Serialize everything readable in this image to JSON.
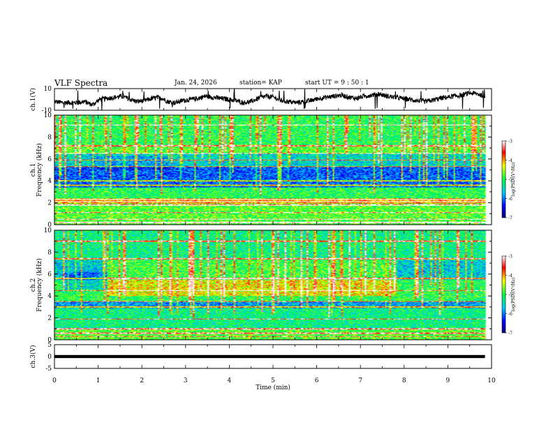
{
  "header": {
    "title": "VLF Spectra",
    "date": "Jan. 24, 2026",
    "station": "station= KAP",
    "start": "start UT =  9 : 50 : 1"
  },
  "chart_data": [
    {
      "type": "line",
      "id": "ch1-waveform",
      "ylabel": "ch.1(V)",
      "ylim": [
        -10,
        10
      ],
      "yticks": [
        "10",
        "-10"
      ],
      "xlim": [
        0,
        10
      ],
      "series": [
        {
          "name": "ch.1",
          "x_range": [
            0,
            9.85
          ],
          "approx_level_V": [
            -2,
            -3,
            -3,
            -3,
            -2,
            -5,
            0,
            1,
            2,
            3,
            0,
            -2,
            -1,
            1,
            2,
            -2,
            -3,
            -1,
            0,
            1,
            3,
            2,
            1,
            0,
            -1,
            -3,
            -2,
            1,
            3,
            2,
            -1,
            -2,
            -3,
            -2,
            -1,
            1,
            2,
            3,
            4,
            2,
            1,
            3,
            4,
            5,
            3,
            2,
            1,
            0,
            -1,
            -2,
            -1,
            1,
            2,
            3,
            4,
            6,
            5,
            3
          ]
        }
      ]
    },
    {
      "type": "heatmap",
      "id": "ch1-spectrogram",
      "ylabel": "ch.1\nFrequency (kHz)",
      "ylim": [
        0,
        10
      ],
      "yticks": [
        "0",
        "2",
        "4",
        "6",
        "8",
        "10"
      ],
      "xlim": [
        0,
        10
      ],
      "time_extent_min": 9.85,
      "colorbar": {
        "label": "log(PSD)(V²/Hz)",
        "range": [
          -7,
          -3
        ],
        "ticks": [
          "-3",
          "-4",
          "-5",
          "-6",
          "-7"
        ]
      },
      "bands": [
        {
          "f_kHz": [
            0.0,
            1.9
          ],
          "log_psd": -4.8
        },
        {
          "f_kHz": [
            1.9,
            2.4
          ],
          "log_psd": -4.0
        },
        {
          "f_kHz": [
            2.4,
            3.4
          ],
          "log_psd": -5.0
        },
        {
          "f_kHz": [
            3.4,
            3.9
          ],
          "log_psd": -6.0
        },
        {
          "f_kHz": [
            3.9,
            5.3
          ],
          "log_psd": -6.1
        },
        {
          "f_kHz": [
            5.3,
            6.5
          ],
          "log_psd": -5.5
        },
        {
          "f_kHz": [
            6.5,
            7.2
          ],
          "log_psd": -4.8
        },
        {
          "f_kHz": [
            7.2,
            10.0
          ],
          "log_psd": -5.0
        }
      ],
      "lines_kHz": [
        0.2,
        0.5,
        1.1,
        1.8,
        2.1,
        2.3,
        3.6,
        4.0,
        5.3,
        5.9,
        6.5,
        7.2,
        9.1
      ]
    },
    {
      "type": "heatmap",
      "id": "ch2-spectrogram",
      "ylabel": "ch.2\nFrequency (kHz)",
      "ylim": [
        0,
        10
      ],
      "yticks": [
        "0",
        "2",
        "4",
        "6",
        "8",
        "10"
      ],
      "xlim": [
        0,
        10
      ],
      "time_extent_min": 9.85,
      "colorbar": {
        "label": "log(PSD)(V²/Hz)",
        "range": [
          -7,
          -3
        ],
        "ticks": [
          "-3",
          "-4",
          "-5",
          "-6",
          "-7"
        ]
      },
      "bands": [
        {
          "f_kHz": [
            0.0,
            1.0
          ],
          "log_psd": -4.8
        },
        {
          "f_kHz": [
            1.0,
            2.9
          ],
          "log_psd": -5.2
        },
        {
          "f_kHz": [
            2.9,
            3.5
          ],
          "log_psd": -5.8
        },
        {
          "f_kHz": [
            3.5,
            5.5
          ],
          "log_psd": -5.0
        },
        {
          "f_kHz": [
            5.5,
            7.3
          ],
          "log_psd": -5.6
        },
        {
          "f_kHz": [
            7.3,
            10.0
          ],
          "log_psd": -5.2
        }
      ],
      "lines_kHz": [
        0.3,
        0.6,
        1.0,
        1.9,
        3.0,
        3.5,
        4.5,
        5.6,
        7.4,
        9.0
      ]
    },
    {
      "type": "line",
      "id": "ch3-waveform",
      "ylabel": "ch.3(V)",
      "ylim": [
        -5,
        5
      ],
      "yticks": [
        "5",
        "0",
        "-5"
      ],
      "xlim": [
        0,
        10
      ],
      "series": [
        {
          "name": "ch.3",
          "x_range": [
            0,
            9.85
          ],
          "band_V": [
            -0.35,
            0.35
          ]
        }
      ]
    }
  ],
  "xaxis": {
    "label": "Time (min)",
    "ticks": [
      "0",
      "1",
      "2",
      "3",
      "4",
      "5",
      "6",
      "7",
      "8",
      "9",
      "10"
    ]
  }
}
